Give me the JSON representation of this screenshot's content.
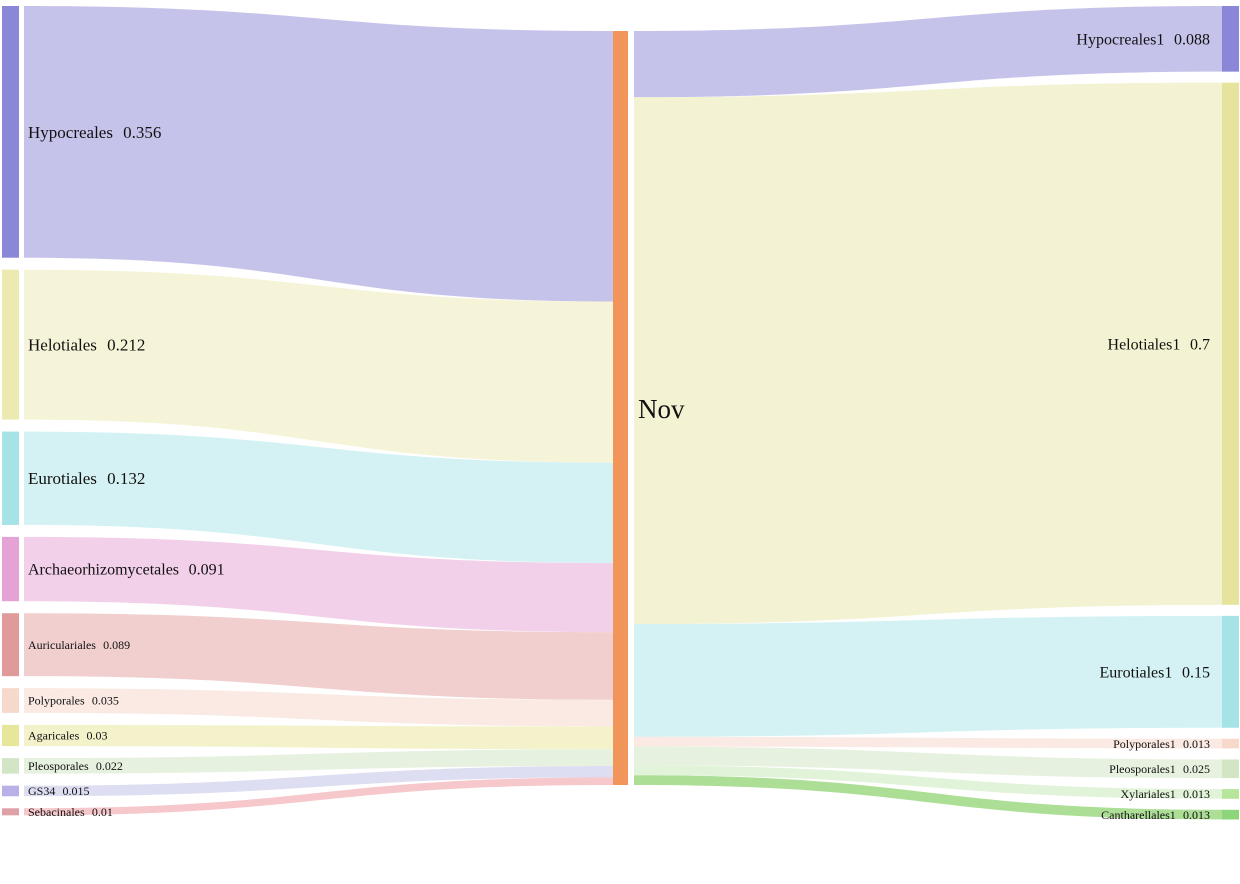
{
  "chart_data": {
    "type": "sankey",
    "center_node": {
      "name": "Nov",
      "color": "#f2955a"
    },
    "left_nodes": [
      {
        "name": "Hypocreales",
        "label": "Hypocreales",
        "value": 0.356,
        "value_label": "0.356",
        "color": "#8a86d8",
        "link_color": "#c3c0ea"
      },
      {
        "name": "Helotiales",
        "label": "Helotiales",
        "value": 0.212,
        "value_label": "0.212",
        "color": "#eceab0",
        "link_color": "#f5f3d6"
      },
      {
        "name": "Eurotiales",
        "label": "Eurotiales",
        "value": 0.132,
        "value_label": "0.132",
        "color": "#a6e3e6",
        "link_color": "#d2f1f2"
      },
      {
        "name": "Archaeorhizomycetales",
        "label": "Archaeorhizomycetales",
        "value": 0.091,
        "value_label": "0.091",
        "color": "#e4a3d4",
        "link_color": "#f1cde8"
      },
      {
        "name": "Auriculariales",
        "label": "Auriculariales",
        "value": 0.089,
        "value_label": "0.089",
        "color": "#e09a9a",
        "link_color": "#f0cccc"
      },
      {
        "name": "Polyporales",
        "label": "Polyporales",
        "value": 0.035,
        "value_label": "0.035",
        "color": "#f7d9cc",
        "link_color": "#fae9e2"
      },
      {
        "name": "Agaricales",
        "label": "Agaricales",
        "value": 0.03,
        "value_label": "0.03",
        "color": "#e8e69a",
        "link_color": "#f2f1c8"
      },
      {
        "name": "Pleosporales",
        "label": "Pleosporales",
        "value": 0.022,
        "value_label": "0.022",
        "color": "#d2e6c6",
        "link_color": "#e6f0de"
      },
      {
        "name": "GS34",
        "label": "GS34",
        "value": 0.015,
        "value_label": "0.015",
        "color": "#b8b0e6",
        "link_color": "#dcdcf2"
      },
      {
        "name": "Sebacinales",
        "label": "Sebacinales",
        "value": 0.01,
        "value_label": "0.01",
        "color": "#e0a0a8",
        "link_color": "#f6c4c8"
      }
    ],
    "right_nodes": [
      {
        "name": "Hypocreales1",
        "label": "Hypocreales1",
        "value": 0.088,
        "value_label": "0.088",
        "color": "#8a86d8",
        "link_color": "#c3c0ea"
      },
      {
        "name": "Helotiales1",
        "label": "Helotiales1",
        "value": 0.7,
        "value_label": "0.7",
        "color": "#e6e49c",
        "link_color": "#f2f1d0"
      },
      {
        "name": "Eurotiales1",
        "label": "Eurotiales1",
        "value": 0.15,
        "value_label": "0.15",
        "color": "#a6e3e6",
        "link_color": "#d2f1f2"
      },
      {
        "name": "Polyporales1",
        "label": "Polyporales1",
        "value": 0.013,
        "value_label": "0.013",
        "color": "#f7d9cc",
        "link_color": "#fbe8e2"
      },
      {
        "name": "Pleosporales1",
        "label": "Pleosporales1",
        "value": 0.025,
        "value_label": "0.025",
        "color": "#d2e6c6",
        "link_color": "#e6f0de"
      },
      {
        "name": "Xylariales1",
        "label": "Xylariales1",
        "value": 0.013,
        "value_label": "0.013",
        "color": "#b6e69c",
        "link_color": "#dff2d6"
      },
      {
        "name": "Cantharellales1",
        "label": "Cantharellales1",
        "value": 0.013,
        "value_label": "0.013",
        "color": "#8dd47a",
        "link_color": "#a8dc90"
      }
    ]
  }
}
